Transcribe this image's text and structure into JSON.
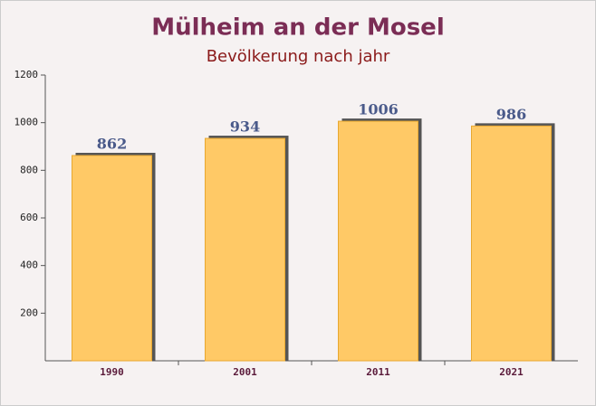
{
  "chart_data": {
    "type": "bar",
    "title": "Mülheim an der Mosel",
    "subtitle": "Bevölkerung nach jahr",
    "categories": [
      "1990",
      "2001",
      "2011",
      "2021"
    ],
    "values": [
      862,
      934,
      1006,
      986
    ],
    "color": "#ffc966",
    "ylim": [
      0,
      1200
    ],
    "yticks": [
      200,
      400,
      600,
      800,
      1000,
      1200
    ]
  }
}
